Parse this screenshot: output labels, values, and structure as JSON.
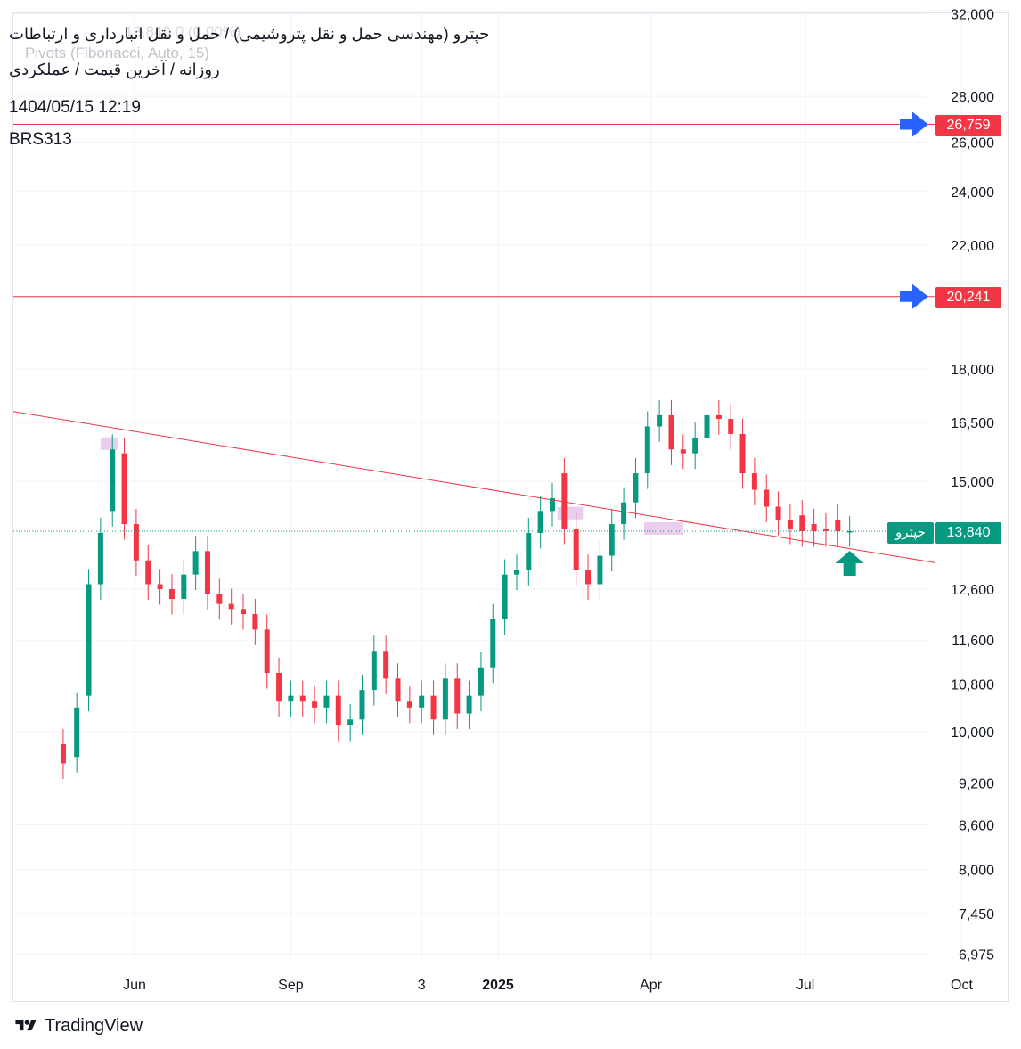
{
  "header": {
    "title": "حپترو (مهندسی حمل و نقل پتروشیمی) / حمل و نقل انبارداری و ارتباطات",
    "subtitle": "روزانه / آخرین قیمت / عملکردی",
    "datetime": "1404/05/15 12:19",
    "symbol": "BRS313",
    "ghost_values": "13,840  0 (0.00%)",
    "ghost_indicator": "Pivots (Fibonacci, Auto, 15)"
  },
  "price_tags": {
    "upper_level": "26,759",
    "lower_level": "20,241",
    "last_price": "13,840",
    "last_name": "حپترو"
  },
  "branding": {
    "logo_text": "TradingView",
    "logo_icon": "tradingview-logo-icon"
  },
  "colors": {
    "up": "#089981",
    "down": "#f23645",
    "level_line": "#f23645",
    "arrow_blue": "#2962ff",
    "highlight": "#e1bee7"
  },
  "chart_data": {
    "type": "candlestick",
    "scale": "log",
    "y_ticks": [
      32000,
      28000,
      26000,
      24000,
      22000,
      18000,
      16500,
      15000,
      12600,
      11600,
      10800,
      10000,
      9200,
      8600,
      8000,
      7450,
      6975
    ],
    "x_ticks": [
      "Jun",
      "Sep",
      "3",
      "2025",
      "Apr",
      "Jul",
      "Oct"
    ],
    "horizontal_levels": [
      26759,
      20241
    ],
    "last_price": 13840,
    "trendline": {
      "from": [
        "2024-04-20",
        16800
      ],
      "to": [
        "2025-10-04",
        13150
      ]
    },
    "markers": [
      {
        "type": "arrow-right",
        "color": "blue",
        "price": 26759
      },
      {
        "type": "arrow-right",
        "color": "blue",
        "price": 20241
      },
      {
        "type": "arrow-up",
        "color": "green",
        "date": "2025-07-27",
        "price": 13100
      }
    ],
    "highlight_zones": [
      {
        "date_from": "2024-05-12",
        "date_to": "2024-05-22",
        "price": 15950
      },
      {
        "date_from": "2025-02-05",
        "date_to": "2025-02-20",
        "price": 14250
      },
      {
        "date_from": "2025-03-28",
        "date_to": "2025-04-20",
        "price": 13900
      }
    ],
    "series": [
      {
        "x": [
          "2024-04-20",
          "2024-04-28",
          "2024-05-05",
          "2024-05-12",
          "2024-05-19",
          "2024-05-26",
          "2024-06-02",
          "2024-06-09",
          "2024-06-16",
          "2024-06-23",
          "2024-06-30",
          "2024-07-07",
          "2024-07-14",
          "2024-07-21",
          "2024-07-28",
          "2024-08-04",
          "2024-08-11",
          "2024-08-18",
          "2024-08-25",
          "2024-09-01",
          "2024-09-08",
          "2024-09-15",
          "2024-09-22",
          "2024-09-29",
          "2024-10-06",
          "2024-10-13",
          "2024-10-20",
          "2024-10-27",
          "2024-11-03",
          "2024-11-10",
          "2024-11-17",
          "2024-11-24",
          "2024-12-01",
          "2024-12-08",
          "2024-12-15",
          "2024-12-22",
          "2024-12-29",
          "2025-01-05",
          "2025-01-12",
          "2025-01-19",
          "2025-01-26",
          "2025-02-02",
          "2025-02-09",
          "2025-02-16",
          "2025-02-23",
          "2025-03-02",
          "2025-03-09",
          "2025-03-16",
          "2025-03-23",
          "2025-03-30",
          "2025-04-06",
          "2025-04-13",
          "2025-04-20",
          "2025-04-27",
          "2025-05-04",
          "2025-05-11",
          "2025-05-18",
          "2025-05-25",
          "2025-06-01",
          "2025-06-08",
          "2025-06-15",
          "2025-06-22",
          "2025-06-29",
          "2025-07-06",
          "2025-07-13",
          "2025-07-20",
          "2025-07-27"
        ],
        "close": [
          9500,
          10400,
          12700,
          13800,
          15800,
          14000,
          13200,
          12700,
          12600,
          12400,
          12900,
          13400,
          12500,
          12300,
          12200,
          12100,
          11800,
          11000,
          10500,
          10600,
          10500,
          10400,
          10600,
          10100,
          10200,
          10700,
          11400,
          10900,
          10500,
          10400,
          10600,
          10200,
          10900,
          10300,
          10600,
          11100,
          12000,
          12900,
          13000,
          13800,
          14300,
          14600,
          13900,
          13000,
          12700,
          13300,
          14000,
          14500,
          15200,
          16400,
          16700,
          15800,
          15700,
          16100,
          16700,
          16600,
          16200,
          15200,
          14800,
          14400,
          14100,
          13900,
          13840,
          13840,
          13840,
          13840,
          13840
        ],
        "open": [
          9800,
          9600,
          10600,
          12700,
          14300,
          15700,
          14000,
          13200,
          12700,
          12600,
          12400,
          12900,
          13400,
          12500,
          12300,
          12200,
          12100,
          11800,
          11000,
          10500,
          10600,
          10500,
          10400,
          10600,
          10100,
          10200,
          10700,
          11400,
          10900,
          10500,
          10400,
          10600,
          10200,
          10900,
          10300,
          10600,
          11100,
          12000,
          12900,
          13000,
          13800,
          14300,
          15200,
          13900,
          13000,
          12700,
          13300,
          14000,
          14500,
          15200,
          16400,
          16700,
          15800,
          15700,
          16100,
          16700,
          16600,
          16200,
          15200,
          14800,
          14400,
          14100,
          14200,
          14000,
          13900,
          14100,
          13840
        ]
      }
    ]
  }
}
